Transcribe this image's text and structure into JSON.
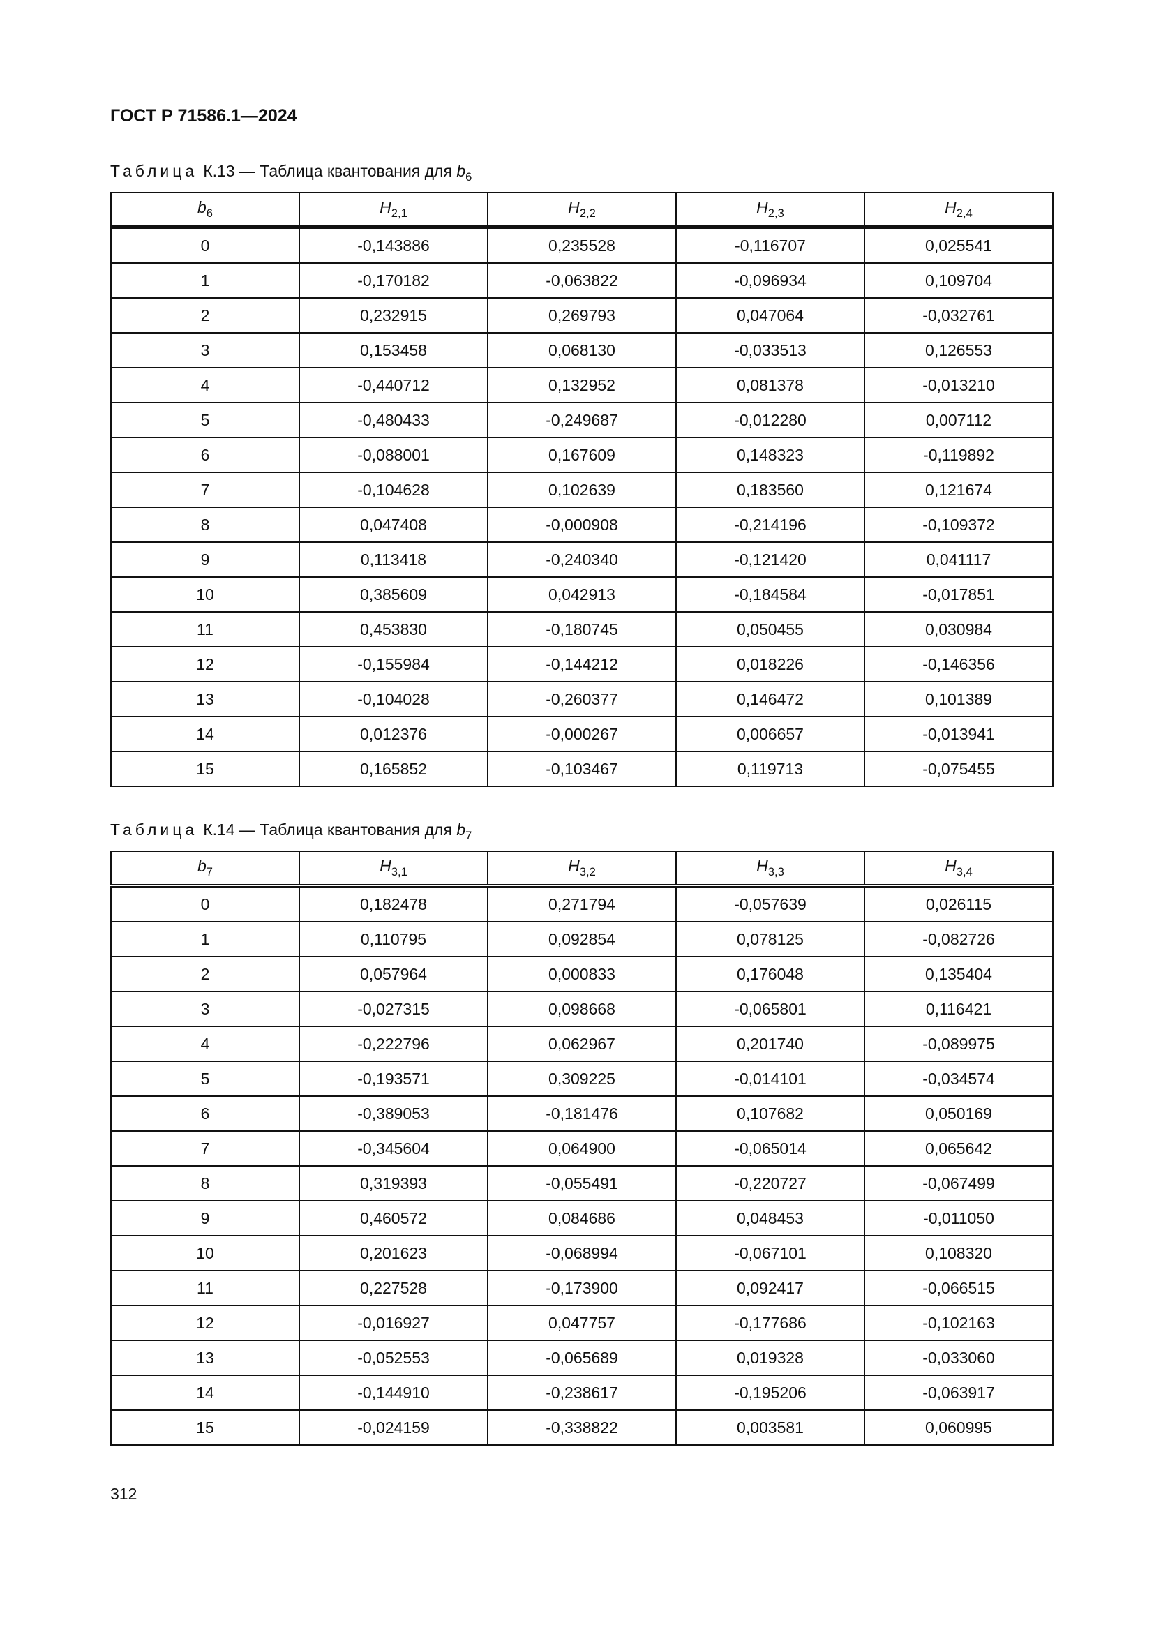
{
  "header": {
    "title": "ГОСТ Р 71586.1—2024"
  },
  "tables": [
    {
      "caption_label": "Таблица",
      "caption_text": "К.13 — Таблица квантования для ",
      "caption_var": "b",
      "caption_var_sub": "6",
      "columns": [
        {
          "main": "b",
          "sub": "6"
        },
        {
          "main": "H",
          "sub": "2,1"
        },
        {
          "main": "H",
          "sub": "2,2"
        },
        {
          "main": "H",
          "sub": "2,3"
        },
        {
          "main": "H",
          "sub": "2,4"
        }
      ],
      "rows": [
        [
          "0",
          "-0,143886",
          "0,235528",
          "-0,116707",
          "0,025541"
        ],
        [
          "1",
          "-0,170182",
          "-0,063822",
          "-0,096934",
          "0,109704"
        ],
        [
          "2",
          "0,232915",
          "0,269793",
          "0,047064",
          "-0,032761"
        ],
        [
          "3",
          "0,153458",
          "0,068130",
          "-0,033513",
          "0,126553"
        ],
        [
          "4",
          "-0,440712",
          "0,132952",
          "0,081378",
          "-0,013210"
        ],
        [
          "5",
          "-0,480433",
          "-0,249687",
          "-0,012280",
          "0,007112"
        ],
        [
          "6",
          "-0,088001",
          "0,167609",
          "0,148323",
          "-0,119892"
        ],
        [
          "7",
          "-0,104628",
          "0,102639",
          "0,183560",
          "0,121674"
        ],
        [
          "8",
          "0,047408",
          "-0,000908",
          "-0,214196",
          "-0,109372"
        ],
        [
          "9",
          "0,113418",
          "-0,240340",
          "-0,121420",
          "0,041117"
        ],
        [
          "10",
          "0,385609",
          "0,042913",
          "-0,184584",
          "-0,017851"
        ],
        [
          "11",
          "0,453830",
          "-0,180745",
          "0,050455",
          "0,030984"
        ],
        [
          "12",
          "-0,155984",
          "-0,144212",
          "0,018226",
          "-0,146356"
        ],
        [
          "13",
          "-0,104028",
          "-0,260377",
          "0,146472",
          "0,101389"
        ],
        [
          "14",
          "0,012376",
          "-0,000267",
          "0,006657",
          "-0,013941"
        ],
        [
          "15",
          "0,165852",
          "-0,103467",
          "0,119713",
          "-0,075455"
        ]
      ]
    },
    {
      "caption_label": "Таблица",
      "caption_text": "К.14 — Таблица квантования для ",
      "caption_var": "b",
      "caption_var_sub": "7",
      "columns": [
        {
          "main": "b",
          "sub": "7"
        },
        {
          "main": "H",
          "sub": "3,1"
        },
        {
          "main": "H",
          "sub": "3,2"
        },
        {
          "main": "H",
          "sub": "3,3"
        },
        {
          "main": "H",
          "sub": "3,4"
        }
      ],
      "rows": [
        [
          "0",
          "0,182478",
          "0,271794",
          "-0,057639",
          "0,026115"
        ],
        [
          "1",
          "0,110795",
          "0,092854",
          "0,078125",
          "-0,082726"
        ],
        [
          "2",
          "0,057964",
          "0,000833",
          "0,176048",
          "0,135404"
        ],
        [
          "3",
          "-0,027315",
          "0,098668",
          "-0,065801",
          "0,116421"
        ],
        [
          "4",
          "-0,222796",
          "0,062967",
          "0,201740",
          "-0,089975"
        ],
        [
          "5",
          "-0,193571",
          "0,309225",
          "-0,014101",
          "-0,034574"
        ],
        [
          "6",
          "-0,389053",
          "-0,181476",
          "0,107682",
          "0,050169"
        ],
        [
          "7",
          "-0,345604",
          "0,064900",
          "-0,065014",
          "0,065642"
        ],
        [
          "8",
          "0,319393",
          "-0,055491",
          "-0,220727",
          "-0,067499"
        ],
        [
          "9",
          "0,460572",
          "0,084686",
          "0,048453",
          "-0,011050"
        ],
        [
          "10",
          "0,201623",
          "-0,068994",
          "-0,067101",
          "0,108320"
        ],
        [
          "11",
          "0,227528",
          "-0,173900",
          "0,092417",
          "-0,066515"
        ],
        [
          "12",
          "-0,016927",
          "0,047757",
          "-0,177686",
          "-0,102163"
        ],
        [
          "13",
          "-0,052553",
          "-0,065689",
          "0,019328",
          "-0,033060"
        ],
        [
          "14",
          "-0,144910",
          "-0,238617",
          "-0,195206",
          "-0,063917"
        ],
        [
          "15",
          "-0,024159",
          "-0,338822",
          "0,003581",
          "0,060995"
        ]
      ]
    }
  ],
  "footer": {
    "page_number": "312"
  }
}
